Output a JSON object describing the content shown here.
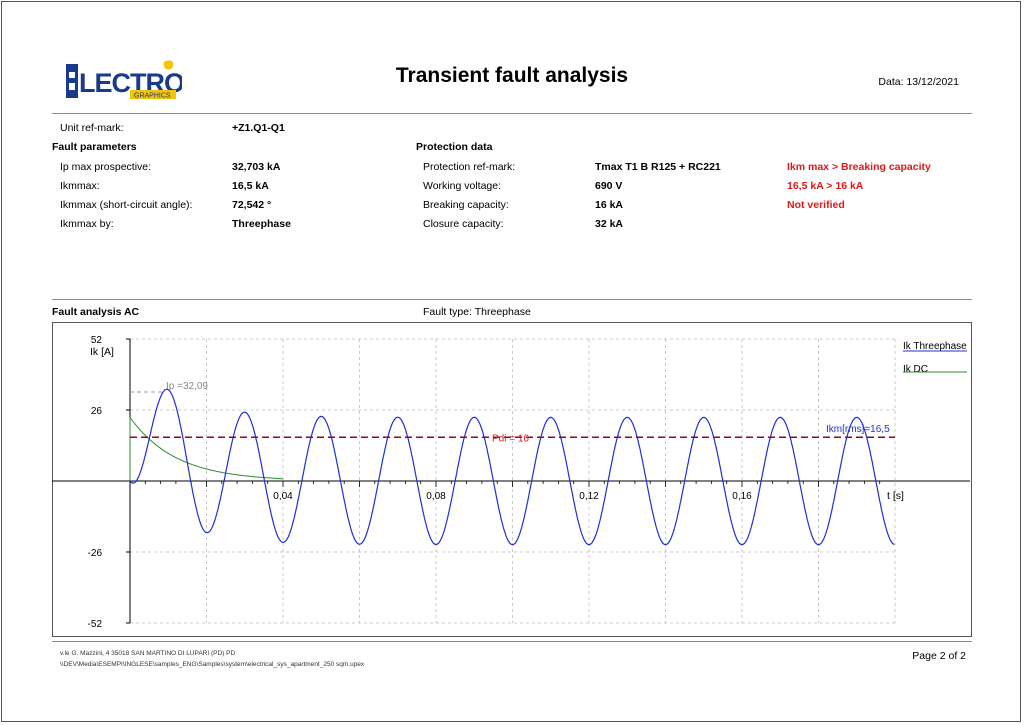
{
  "header": {
    "logo_text": "ELECTRO",
    "logo_sub": "GRAPHICS",
    "title": "Transient fault analysis",
    "date": "Data: 13/12/2021"
  },
  "unit": {
    "label": "Unit ref-mark:",
    "value": "+Z1.Q1-Q1"
  },
  "fault_params": {
    "heading": "Fault parameters",
    "rows": [
      {
        "label": "Ip max prospective:",
        "value": "32,703 kA"
      },
      {
        "label": "Ikmmax:",
        "value": "16,5 kA"
      },
      {
        "label": "Ikmmax (short-circuit angle):",
        "value": "72,542 °"
      },
      {
        "label": "Ikmmax by:",
        "value": "Threephase"
      }
    ]
  },
  "protection": {
    "heading": "Protection data",
    "rows": [
      {
        "label": "Protection ref-mark:",
        "value": "Tmax T1 B R125 + RC221",
        "status": "Ikm max > Breaking capacity"
      },
      {
        "label": "Working voltage:",
        "value": "690 V",
        "status": "16,5 kA > 16 kA"
      },
      {
        "label": "Breaking capacity:",
        "value": "16 kA",
        "status": "Not verified"
      },
      {
        "label": "Closure capacity:",
        "value": "32 kA",
        "status": ""
      }
    ]
  },
  "analysis": {
    "heading": "Fault analysis AC",
    "fault_type": "Fault type: Threephase"
  },
  "chart_data": {
    "type": "line",
    "ylabel": "Ik [A]",
    "xlabel": "t [s]",
    "xlim": [
      0,
      0.2
    ],
    "ylim": [
      -52,
      52
    ],
    "yticks": [
      "52",
      "26",
      "-26",
      "-52"
    ],
    "xticks": [
      "0,04",
      "0,08",
      "0,12",
      "0,16"
    ],
    "grid": true,
    "legend_position": "right",
    "series": [
      {
        "name": "Ik Threephase",
        "color": "#1f2fd8",
        "peak": 32.09,
        "steady_amplitude": 23.3,
        "frequency_hz": 50,
        "dc_offset": 23.3,
        "tau_s": 0.012
      },
      {
        "name": "Ik DC",
        "color": "#2e8b2e",
        "start": 23.3,
        "tau_s": 0.012
      }
    ],
    "annotations": [
      {
        "text": "Ip =32,09",
        "color": "#888888"
      },
      {
        "text": "Pdi = 16",
        "value": 16,
        "color": "#e01818"
      },
      {
        "text": "Ikm[rms]=16,5",
        "value": 16.5,
        "color": "#1f2fd8"
      }
    ],
    "pdi_line": {
      "value": 16,
      "color": "#8b0a2a"
    }
  },
  "footer": {
    "address": "v.le G. Mazzini, 4  35018  SAN MARTINO DI LUPARI (PD)  PD",
    "path": "\\\\DEV\\Media\\ESEMPI\\INGLESE\\samples_ENG\\Samples\\system\\electrical_sys_apartment_250 sqm.upex",
    "page": "Page 2 of 2"
  }
}
